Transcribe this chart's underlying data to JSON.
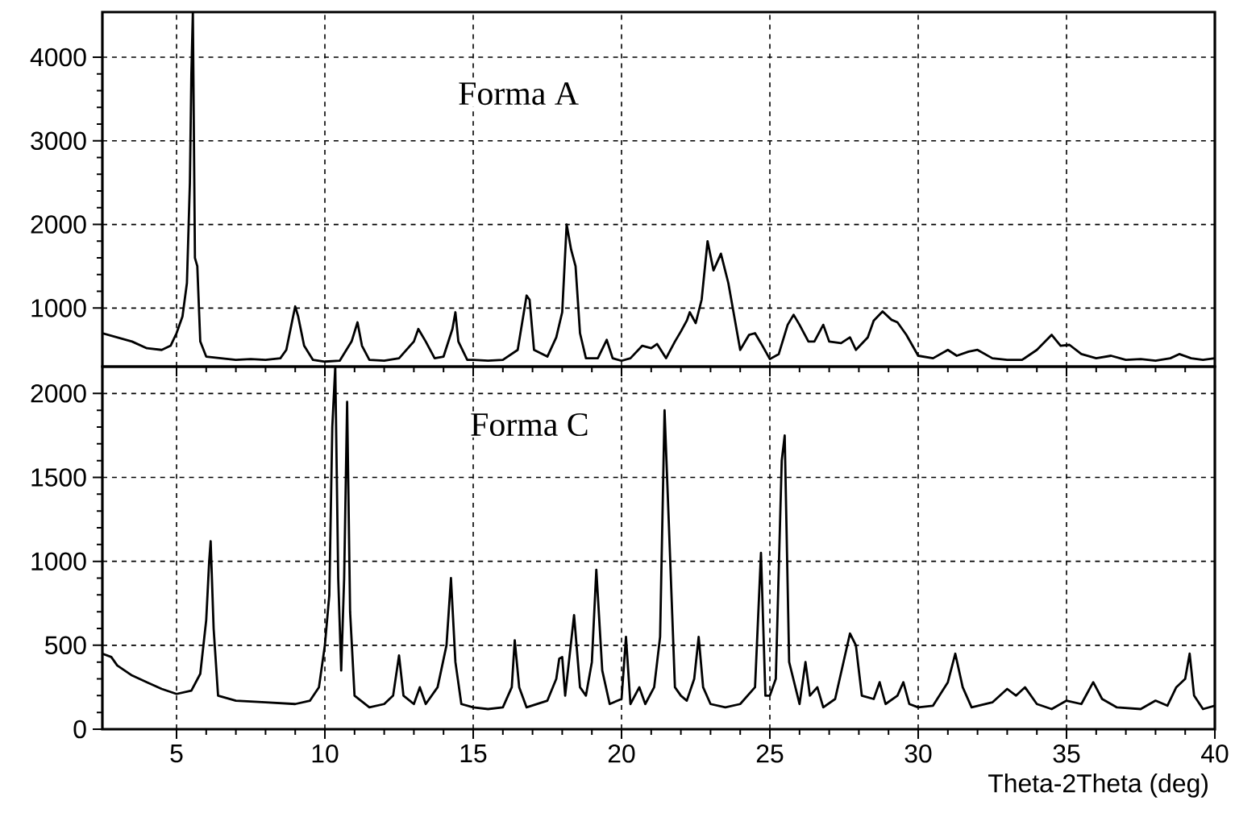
{
  "chart_data": [
    {
      "type": "line",
      "annotations": [
        "Forma A"
      ],
      "xlim": [
        2.5,
        40
      ],
      "xticks": [
        5,
        10,
        15,
        20,
        25,
        30,
        35,
        40
      ],
      "ylim": [
        300,
        4540
      ],
      "yticks": [
        1000,
        2000,
        3000,
        4000
      ],
      "grid": true,
      "tick_labels": "y",
      "x": [
        2.5,
        3,
        3.5,
        4,
        4.5,
        4.8,
        5.0,
        5.2,
        5.35,
        5.45,
        5.5,
        5.55,
        5.62,
        5.7,
        5.8,
        6.0,
        6.5,
        7,
        7.5,
        8,
        8.5,
        8.7,
        8.9,
        9.0,
        9.1,
        9.3,
        9.6,
        10,
        10.5,
        10.9,
        11.1,
        11.25,
        11.5,
        12,
        12.5,
        13.0,
        13.15,
        13.4,
        13.7,
        14.0,
        14.3,
        14.4,
        14.5,
        14.8,
        15,
        15.5,
        16,
        16.5,
        16.8,
        16.9,
        17.05,
        17.5,
        17.8,
        18.0,
        18.15,
        18.3,
        18.45,
        18.6,
        18.8,
        19.2,
        19.5,
        19.7,
        20,
        20.3,
        20.7,
        21.0,
        21.2,
        21.5,
        21.8,
        22.0,
        22.2,
        22.3,
        22.5,
        22.7,
        22.9,
        23.1,
        23.35,
        23.6,
        23.8,
        24.0,
        24.3,
        24.5,
        24.7,
        25,
        25.3,
        25.6,
        25.8,
        26.0,
        26.3,
        26.5,
        26.8,
        27.0,
        27.4,
        27.7,
        27.9,
        28.3,
        28.5,
        28.8,
        29.1,
        29.3,
        29.6,
        30,
        30.5,
        31,
        31.3,
        31.7,
        32,
        32.5,
        33,
        33.5,
        34,
        34.5,
        34.8,
        35.1,
        35.5,
        36,
        36.5,
        37,
        37.5,
        38,
        38.5,
        38.8,
        39.2,
        39.6,
        40
      ],
      "series": [
        {
          "color": "#000000",
          "values": [
            700,
            650,
            600,
            520,
            500,
            550,
            700,
            900,
            1300,
            2500,
            3800,
            4540,
            1600,
            1500,
            600,
            420,
            400,
            380,
            390,
            380,
            400,
            500,
            850,
            1020,
            900,
            550,
            380,
            360,
            370,
            600,
            830,
            550,
            380,
            370,
            400,
            600,
            750,
            600,
            400,
            420,
            750,
            950,
            600,
            380,
            380,
            370,
            380,
            500,
            1150,
            1100,
            500,
            420,
            650,
            950,
            2000,
            1700,
            1500,
            700,
            400,
            400,
            620,
            400,
            370,
            400,
            550,
            520,
            570,
            400,
            600,
            720,
            850,
            950,
            820,
            1100,
            1800,
            1450,
            1650,
            1300,
            900,
            500,
            680,
            700,
            580,
            390,
            450,
            800,
            920,
            800,
            600,
            600,
            800,
            600,
            580,
            650,
            500,
            650,
            850,
            960,
            860,
            830,
            680,
            430,
            400,
            500,
            430,
            480,
            500,
            400,
            380,
            380,
            500,
            680,
            550,
            560,
            450,
            400,
            430,
            380,
            390,
            370,
            400,
            450,
            400,
            380,
            400
          ]
        }
      ]
    },
    {
      "type": "line",
      "annotations": [
        "Forma C"
      ],
      "xlabel": "Theta-2Theta (deg)",
      "xlim": [
        2.5,
        40
      ],
      "xticks": [
        5,
        10,
        15,
        20,
        25,
        30,
        35,
        40
      ],
      "ylim": [
        0,
        2160
      ],
      "yticks": [
        0,
        500,
        1000,
        1500,
        2000
      ],
      "grid": true,
      "x": [
        2.5,
        2.8,
        3,
        3.5,
        4,
        4.5,
        5,
        5.5,
        5.8,
        6.0,
        6.1,
        6.15,
        6.25,
        6.4,
        7,
        8,
        9,
        9.5,
        9.8,
        10.0,
        10.15,
        10.25,
        10.35,
        10.45,
        10.55,
        10.65,
        10.75,
        10.85,
        11.0,
        11.5,
        12,
        12.3,
        12.5,
        12.65,
        13.0,
        13.2,
        13.4,
        13.8,
        14.1,
        14.25,
        14.4,
        14.6,
        15,
        15.5,
        16,
        16.3,
        16.4,
        16.55,
        16.8,
        17.5,
        17.8,
        17.9,
        18.0,
        18.1,
        18.4,
        18.6,
        18.8,
        19.0,
        19.15,
        19.35,
        19.6,
        20.0,
        20.15,
        20.3,
        20.6,
        20.8,
        21.1,
        21.3,
        21.45,
        21.6,
        21.8,
        22.0,
        22.2,
        22.45,
        22.6,
        22.75,
        23,
        23.5,
        24,
        24.5,
        24.7,
        24.85,
        25.0,
        25.2,
        25.4,
        25.5,
        25.65,
        26.0,
        26.2,
        26.35,
        26.6,
        26.8,
        27.2,
        27.7,
        27.9,
        28.1,
        28.5,
        28.7,
        28.9,
        29.3,
        29.5,
        29.7,
        30,
        30.5,
        31.0,
        31.25,
        31.5,
        31.8,
        32.5,
        33,
        33.3,
        33.6,
        34,
        34.5,
        35,
        35.5,
        35.9,
        36.2,
        36.7,
        37.5,
        38,
        38.4,
        38.7,
        39.0,
        39.15,
        39.3,
        39.6,
        40
      ],
      "series": [
        {
          "color": "#000000",
          "values": [
            450,
            430,
            380,
            320,
            280,
            240,
            210,
            230,
            330,
            650,
            1000,
            1120,
            600,
            200,
            170,
            160,
            150,
            170,
            250,
            500,
            800,
            1800,
            2160,
            900,
            350,
            900,
            1950,
            700,
            200,
            130,
            150,
            200,
            440,
            200,
            150,
            250,
            150,
            250,
            500,
            900,
            400,
            150,
            130,
            120,
            130,
            250,
            530,
            250,
            130,
            170,
            300,
            420,
            430,
            200,
            680,
            250,
            200,
            400,
            950,
            350,
            150,
            180,
            550,
            150,
            250,
            150,
            250,
            550,
            1900,
            1200,
            250,
            200,
            170,
            300,
            550,
            250,
            150,
            130,
            150,
            250,
            1050,
            200,
            200,
            300,
            1600,
            1750,
            400,
            150,
            400,
            200,
            250,
            130,
            180,
            570,
            500,
            200,
            180,
            280,
            150,
            200,
            280,
            150,
            130,
            140,
            280,
            450,
            250,
            130,
            160,
            240,
            200,
            250,
            150,
            120,
            170,
            150,
            280,
            180,
            130,
            120,
            170,
            140,
            250,
            300,
            450,
            200,
            120,
            140
          ]
        }
      ]
    }
  ]
}
